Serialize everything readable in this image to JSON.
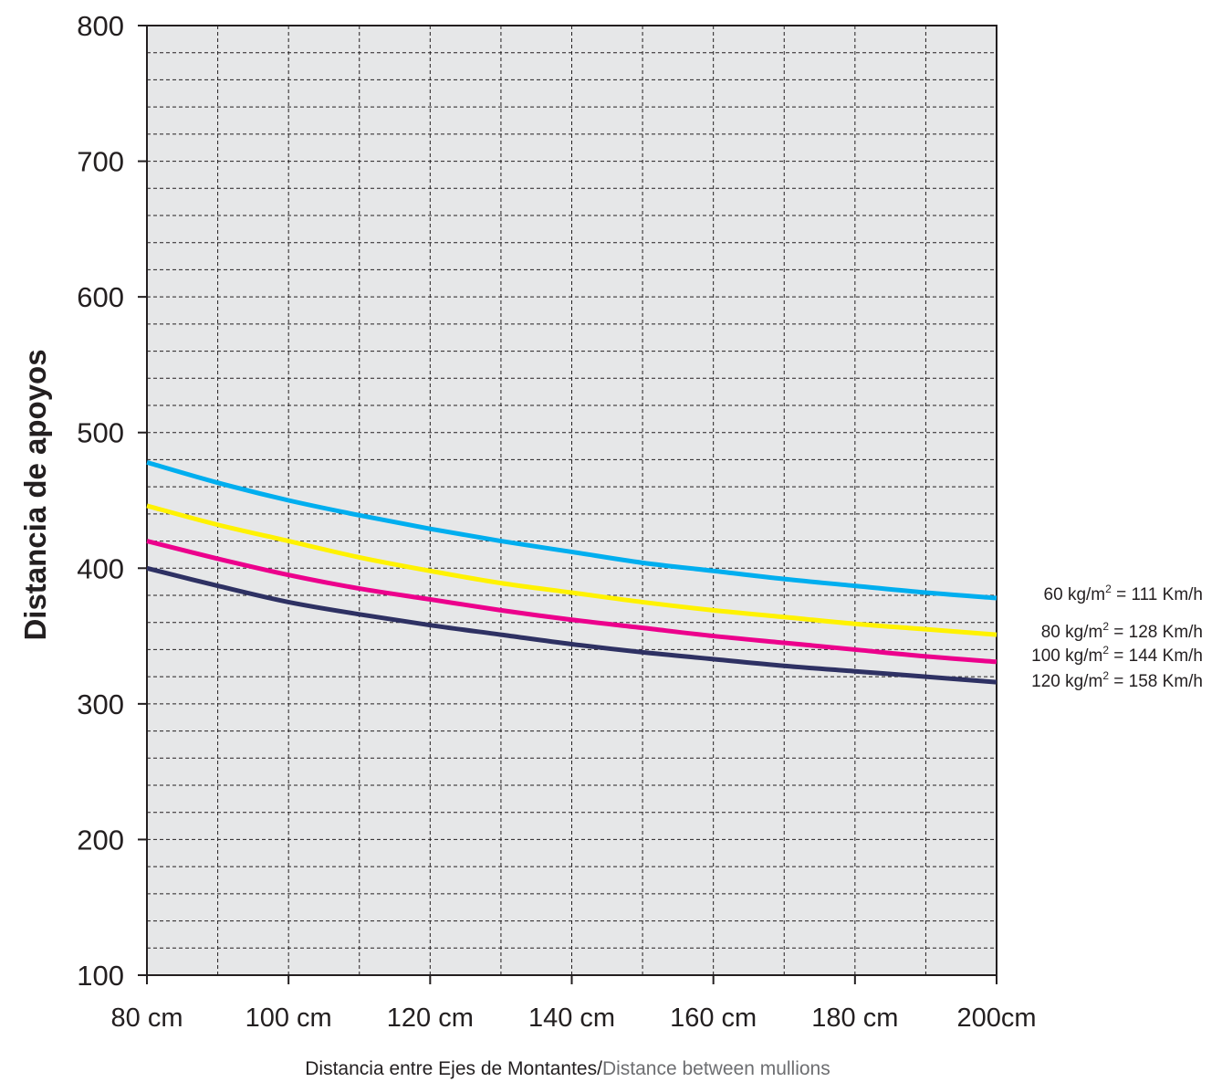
{
  "chart_data": {
    "type": "line",
    "xlabel_es": "Distancia entre Ejes de Montantes/",
    "xlabel_en": "Distance between mullions",
    "ylabel": "Distancia de apoyos",
    "xlim": [
      80,
      200
    ],
    "ylim": [
      100,
      800
    ],
    "x_ticks": [
      {
        "value": 80,
        "label": "80 cm"
      },
      {
        "value": 100,
        "label": "100 cm"
      },
      {
        "value": 120,
        "label": "120 cm"
      },
      {
        "value": 140,
        "label": "140 cm"
      },
      {
        "value": 160,
        "label": "160 cm"
      },
      {
        "value": 180,
        "label": "180 cm"
      },
      {
        "value": 200,
        "label": "200cm"
      }
    ],
    "y_ticks": [
      100,
      200,
      300,
      400,
      500,
      600,
      700,
      800
    ],
    "grid": true,
    "background": "#e6e7e8",
    "x": [
      80,
      90,
      100,
      110,
      120,
      130,
      140,
      150,
      160,
      170,
      180,
      190,
      200
    ],
    "series": [
      {
        "label_pre": "60 kg/m",
        "label_sup": "2",
        "label_post": " = 111 Km/h",
        "color": "#00aeef",
        "values": [
          478,
          463,
          450,
          439,
          429,
          420,
          412,
          404,
          398,
          392,
          387,
          382,
          378
        ]
      },
      {
        "label_pre": "80 kg/m",
        "label_sup": "2",
        "label_post": " = 128 Km/h",
        "color": "#fff200",
        "values": [
          446,
          432,
          420,
          408,
          398,
          389,
          382,
          375,
          369,
          364,
          359,
          355,
          351
        ]
      },
      {
        "label_pre": "100 kg/m",
        "label_sup": "2",
        "label_post": " = 144 Km/h",
        "color": "#ec008c",
        "values": [
          420,
          407,
          395,
          385,
          377,
          369,
          362,
          356,
          350,
          345,
          340,
          335,
          331
        ]
      },
      {
        "label_pre": "120 kg/m",
        "label_sup": "2",
        "label_post": " = 158 Km/h",
        "color": "#2e3163",
        "values": [
          400,
          387,
          375,
          366,
          358,
          351,
          344,
          338,
          333,
          328,
          324,
          320,
          316
        ]
      }
    ]
  }
}
